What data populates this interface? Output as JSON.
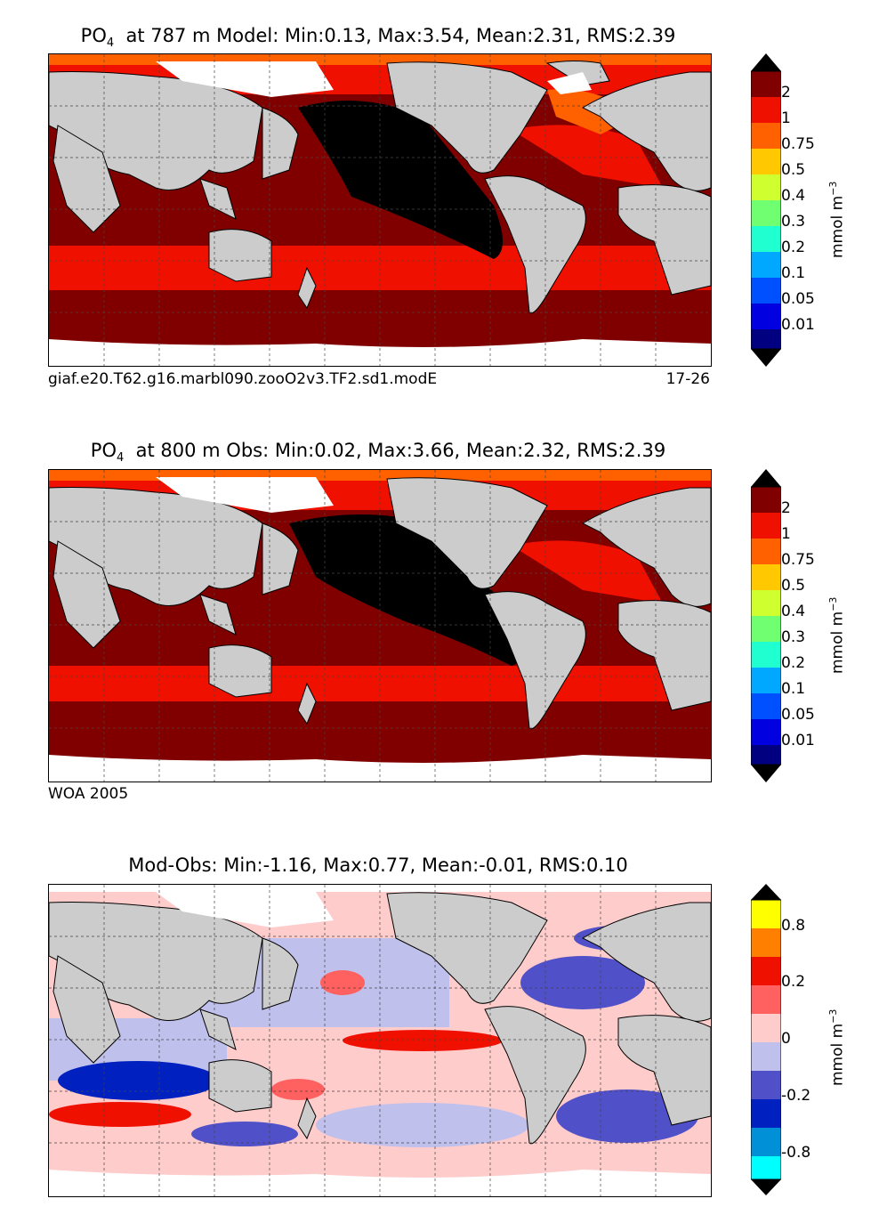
{
  "panels": [
    {
      "title_prefix": "PO",
      "title_sub": "4",
      "title_rest": "at 787 m Model: Min:0.13, Max:3.54, Mean:2.31, RMS:2.39",
      "footer_left": "giaf.e20.T62.g16.marbl090.zooO2v3.TF2.sd1.modE",
      "footer_right": "17-26",
      "colorbar_ticks": [
        "2",
        "1",
        "0.75",
        "0.5",
        "0.4",
        "0.3",
        "0.2",
        "0.1",
        "0.05",
        "0.01"
      ],
      "colorbar_unit": "mmol m",
      "colorbar_unit_exp": "−3"
    },
    {
      "title_prefix": "PO",
      "title_sub": "4",
      "title_rest": "at 800 m Obs: Min:0.02, Max:3.66, Mean:2.32, RMS:2.39",
      "footer_left": "WOA 2005",
      "footer_right": "",
      "colorbar_ticks": [
        "2",
        "1",
        "0.75",
        "0.5",
        "0.4",
        "0.3",
        "0.2",
        "0.1",
        "0.05",
        "0.01"
      ],
      "colorbar_unit": "mmol m",
      "colorbar_unit_exp": "−3"
    },
    {
      "title_prefix": "",
      "title_sub": "",
      "title_rest": "Mod-Obs: Min:-1.16, Max:0.77, Mean:-0.01, RMS:0.10",
      "footer_left": "",
      "footer_right": "",
      "colorbar_ticks": [
        "0.8",
        "0.2",
        "0",
        "-0.2",
        "-0.8"
      ],
      "colorbar_unit": "mmol m",
      "colorbar_unit_exp": "−3"
    }
  ],
  "colors": {
    "abs_scale": [
      "#000080",
      "#0000e0",
      "#0050ff",
      "#00a8ff",
      "#20ffd0",
      "#70ff70",
      "#d0ff30",
      "#ffc800",
      "#ff6000",
      "#f01000",
      "#800000"
    ],
    "diff_scale": [
      "#00ffff",
      "#0090d8",
      "#0020c0",
      "#5050c8",
      "#c0c0ec",
      "#ffcccc",
      "#ff6060",
      "#f01000",
      "#ff8000",
      "#ffff00"
    ],
    "land": "#cccccc",
    "ice": "#ffffff"
  }
}
